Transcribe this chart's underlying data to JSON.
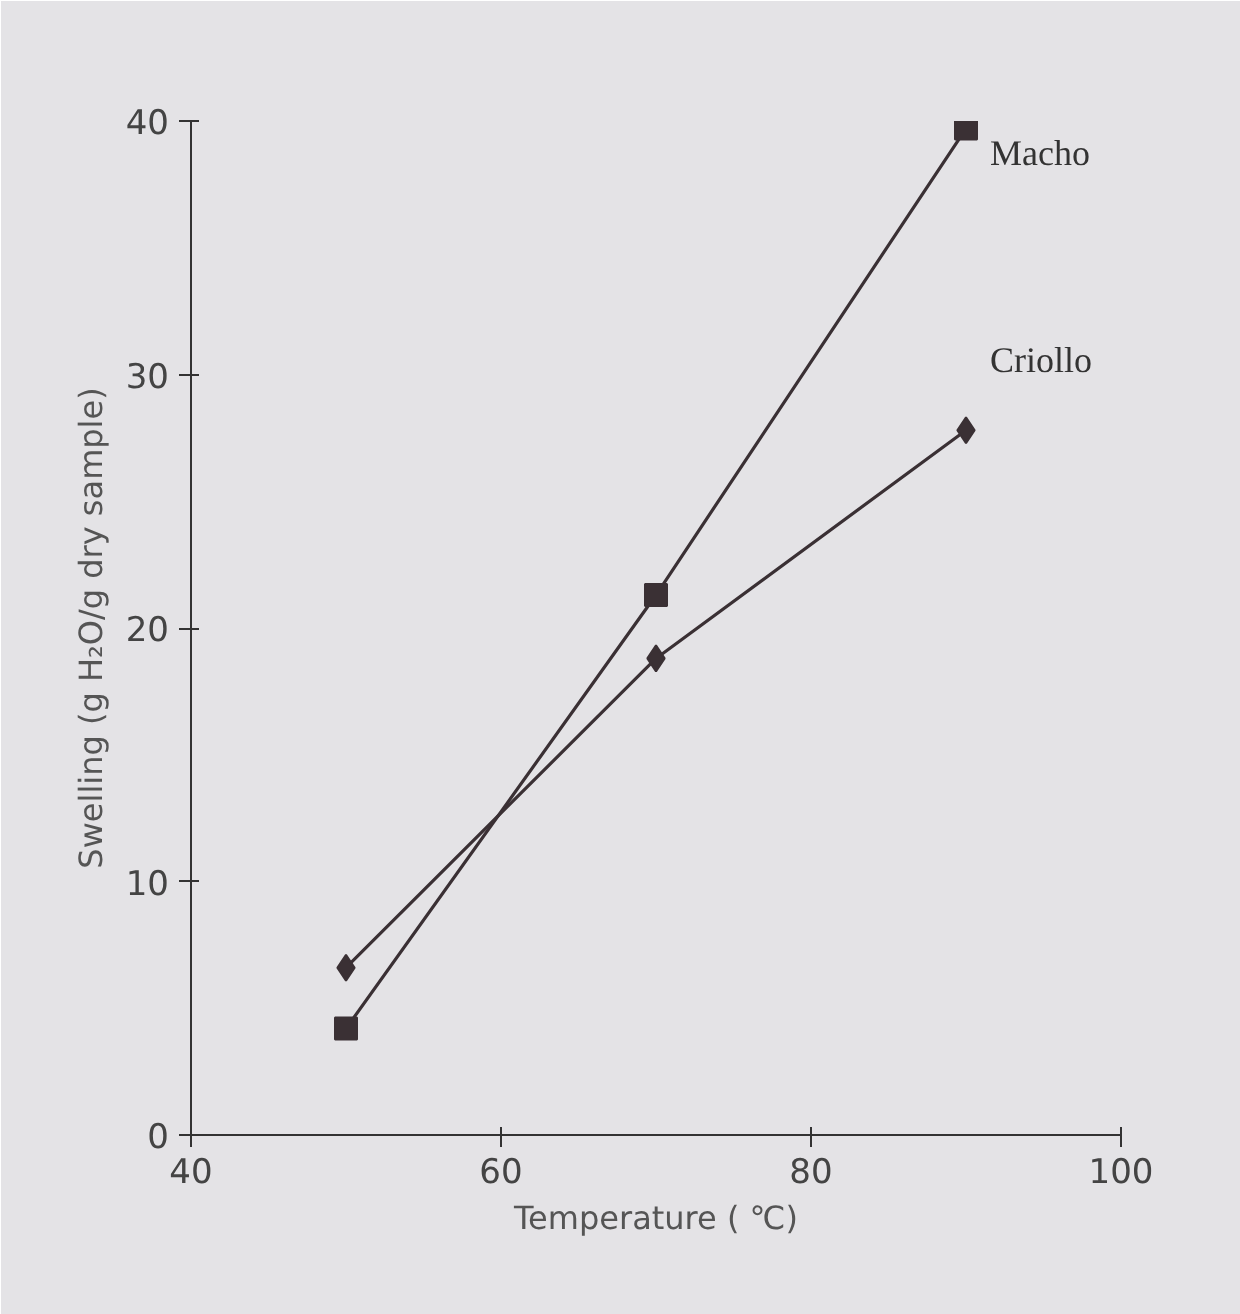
{
  "chart_data": {
    "type": "line",
    "xlabel": "Temperature ( ℃)",
    "ylabel": "Swelling (g H₂O/g dry sample)",
    "x": [
      50,
      70,
      90
    ],
    "series": [
      {
        "name": "Macho",
        "color": "#3a3034",
        "marker": "square",
        "values": [
          4.2,
          21.3,
          39.7
        ]
      },
      {
        "name": "Criollo",
        "color": "#3a3034",
        "marker": "diamond",
        "values": [
          6.6,
          18.8,
          27.8
        ]
      }
    ],
    "xlim": [
      40,
      100
    ],
    "ylim": [
      0,
      40
    ],
    "xticks": [
      40,
      60,
      80,
      100
    ],
    "yticks": [
      0,
      10,
      20,
      30,
      40
    ],
    "line_style": "solid"
  }
}
